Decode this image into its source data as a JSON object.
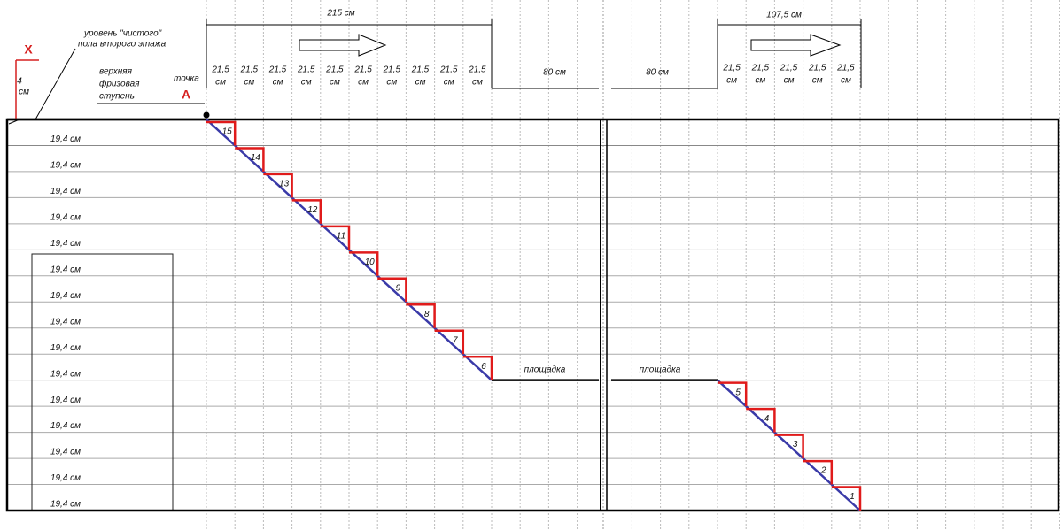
{
  "dimensions": {
    "flight_upper": "215 см",
    "flight_lower": "107,5 см",
    "landing_left": "80 см",
    "landing_right": "80 см",
    "floor_gap": {
      "value": "4",
      "unit": "см"
    }
  },
  "tread_labels_upper": [
    {
      "value": "21,5",
      "unit": "см"
    },
    {
      "value": "21,5",
      "unit": "см"
    },
    {
      "value": "21,5",
      "unit": "см"
    },
    {
      "value": "21,5",
      "unit": "см"
    },
    {
      "value": "21,5",
      "unit": "см"
    },
    {
      "value": "21,5",
      "unit": "см"
    },
    {
      "value": "21,5",
      "unit": "см"
    },
    {
      "value": "21,5",
      "unit": "см"
    },
    {
      "value": "21,5",
      "unit": "см"
    },
    {
      "value": "21,5",
      "unit": "см"
    }
  ],
  "tread_labels_lower": [
    {
      "value": "21,5",
      "unit": "см"
    },
    {
      "value": "21,5",
      "unit": "см"
    },
    {
      "value": "21,5",
      "unit": "см"
    },
    {
      "value": "21,5",
      "unit": "см"
    },
    {
      "value": "21,5",
      "unit": "см"
    }
  ],
  "riser_labels": [
    "19,4 см",
    "19,4 см",
    "19,4 см",
    "19,4 см",
    "19,4 см",
    "19,4 см",
    "19,4 см",
    "19,4 см",
    "19,4 см",
    "19,4 см",
    "19,4 см",
    "19,4 см",
    "19,4 см",
    "19,4 см",
    "19,4 см"
  ],
  "steps_upper": [
    "15",
    "14",
    "13",
    "12",
    "11",
    "10",
    "9",
    "8",
    "7",
    "6"
  ],
  "steps_lower": [
    "5",
    "4",
    "3",
    "2",
    "1"
  ],
  "annotations": {
    "floor_level": [
      "уровень \"чистого\"",
      "пола второго этажа"
    ],
    "top_step": [
      "верхняя",
      "фризовая",
      "ступень"
    ],
    "point_label": "точка",
    "point_name": "A",
    "x_mark": "X",
    "landing_left": "площадка",
    "landing_right": "площадка"
  }
}
